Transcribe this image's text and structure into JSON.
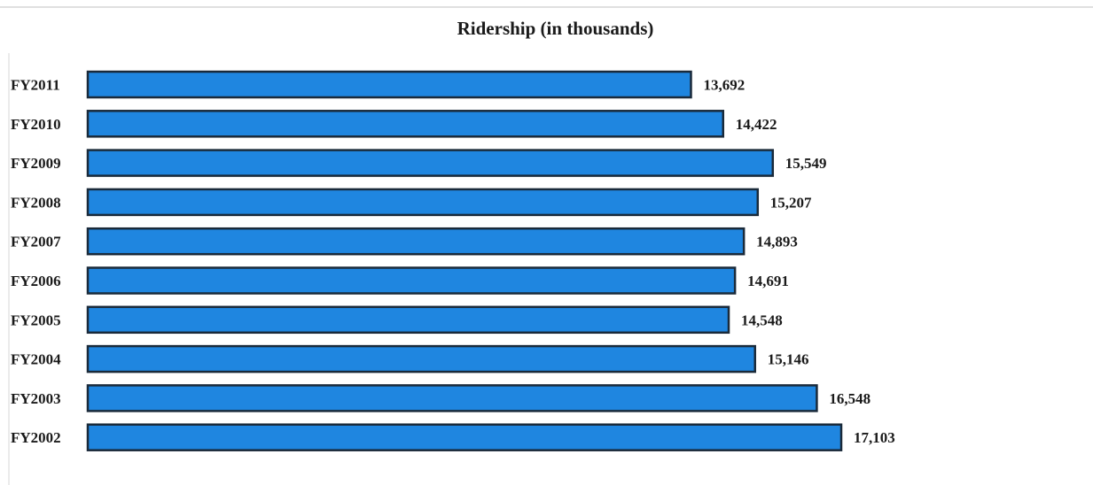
{
  "chart_data": {
    "type": "bar",
    "orientation": "horizontal",
    "title": "Ridership (in thousands)",
    "categories": [
      "FY2011",
      "FY2010",
      "FY2009",
      "FY2008",
      "FY2007",
      "FY2006",
      "FY2005",
      "FY2004",
      "FY2003",
      "FY2002"
    ],
    "values": [
      13692,
      14422,
      15549,
      15207,
      14893,
      14691,
      14548,
      15146,
      16548,
      17103
    ],
    "value_labels": [
      "13,692",
      "14,422",
      "15,549",
      "15,207",
      "14,893",
      "14,691",
      "14,548",
      "15,146",
      "16,548",
      "17,103"
    ],
    "xlabel": "",
    "ylabel": "",
    "grid": false,
    "legend": "none",
    "bar_color": "#1f86e0",
    "bar_edge_color": "#1a2a3a"
  }
}
